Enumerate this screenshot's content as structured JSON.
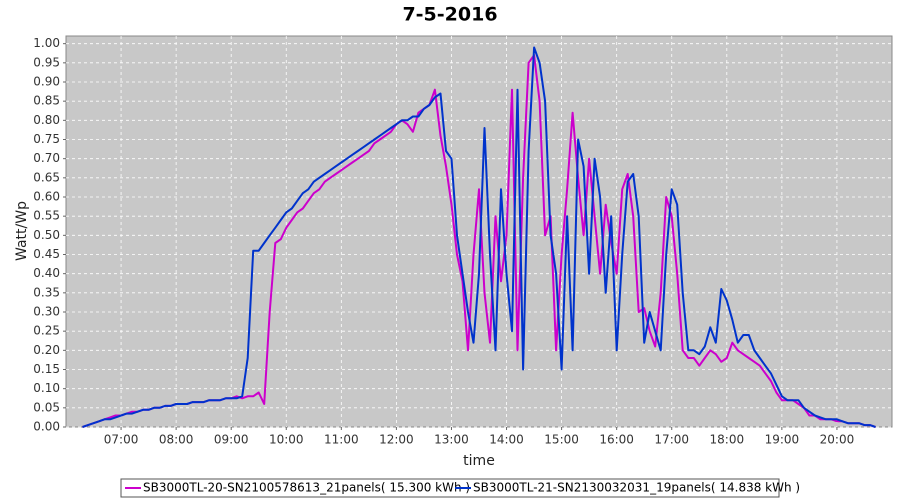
{
  "chart_data": {
    "type": "line",
    "title": "7-5-2016",
    "x_label": "time",
    "y_label": "Watt/Wp",
    "xlim": [
      6.0,
      21.0
    ],
    "xticks": [
      {
        "value": 7,
        "label": "07:00"
      },
      {
        "value": 8,
        "label": "08:00"
      },
      {
        "value": 9,
        "label": "09:00"
      },
      {
        "value": 10,
        "label": "10:00"
      },
      {
        "value": 11,
        "label": "11:00"
      },
      {
        "value": 12,
        "label": "12:00"
      },
      {
        "value": 13,
        "label": "13:00"
      },
      {
        "value": 14,
        "label": "14:00"
      },
      {
        "value": 15,
        "label": "15:00"
      },
      {
        "value": 16,
        "label": "16:00"
      },
      {
        "value": 17,
        "label": "17:00"
      },
      {
        "value": 18,
        "label": "18:00"
      },
      {
        "value": 19,
        "label": "19:00"
      },
      {
        "value": 20,
        "label": "20:00"
      }
    ],
    "ylim": [
      0,
      1.02
    ],
    "yticks": [
      {
        "value": 0,
        "label": "0.00"
      },
      {
        "value": 0.05,
        "label": "0.05"
      },
      {
        "value": 0.1,
        "label": "0.10"
      },
      {
        "value": 0.15,
        "label": "0.15"
      },
      {
        "value": 0.2,
        "label": "0.20"
      },
      {
        "value": 0.25,
        "label": "0.25"
      },
      {
        "value": 0.3,
        "label": "0.30"
      },
      {
        "value": 0.35,
        "label": "0.35"
      },
      {
        "value": 0.4,
        "label": "0.40"
      },
      {
        "value": 0.45,
        "label": "0.45"
      },
      {
        "value": 0.5,
        "label": "0.50"
      },
      {
        "value": 0.55,
        "label": "0.55"
      },
      {
        "value": 0.6,
        "label": "0.60"
      },
      {
        "value": 0.65,
        "label": "0.65"
      },
      {
        "value": 0.7,
        "label": "0.70"
      },
      {
        "value": 0.75,
        "label": "0.75"
      },
      {
        "value": 0.8,
        "label": "0.80"
      },
      {
        "value": 0.85,
        "label": "0.85"
      },
      {
        "value": 0.9,
        "label": "0.90"
      },
      {
        "value": 0.95,
        "label": "0.95"
      },
      {
        "value": 1.0,
        "label": "1.00"
      }
    ],
    "grid": true,
    "legend": "bottom",
    "x": [
      6.3,
      6.4,
      6.5,
      6.6,
      6.7,
      6.8,
      6.9,
      7.0,
      7.1,
      7.2,
      7.3,
      7.4,
      7.5,
      7.6,
      7.7,
      7.8,
      7.9,
      8.0,
      8.1,
      8.2,
      8.3,
      8.4,
      8.5,
      8.6,
      8.7,
      8.8,
      8.9,
      9.0,
      9.1,
      9.2,
      9.3,
      9.4,
      9.5,
      9.6,
      9.7,
      9.8,
      9.9,
      10.0,
      10.1,
      10.2,
      10.3,
      10.4,
      10.5,
      10.6,
      10.7,
      10.8,
      10.9,
      11.0,
      11.1,
      11.2,
      11.3,
      11.4,
      11.5,
      11.6,
      11.7,
      11.8,
      11.9,
      12.0,
      12.1,
      12.2,
      12.3,
      12.4,
      12.5,
      12.6,
      12.7,
      12.8,
      12.9,
      13.0,
      13.1,
      13.2,
      13.3,
      13.4,
      13.5,
      13.6,
      13.7,
      13.8,
      13.9,
      14.0,
      14.1,
      14.2,
      14.3,
      14.4,
      14.5,
      14.6,
      14.7,
      14.8,
      14.9,
      15.0,
      15.1,
      15.2,
      15.3,
      15.4,
      15.5,
      15.6,
      15.7,
      15.8,
      15.9,
      16.0,
      16.1,
      16.2,
      16.3,
      16.4,
      16.5,
      16.6,
      16.7,
      16.8,
      16.9,
      17.0,
      17.1,
      17.2,
      17.3,
      17.4,
      17.5,
      17.6,
      17.7,
      17.8,
      17.9,
      18.0,
      18.1,
      18.2,
      18.3,
      18.4,
      18.5,
      18.6,
      18.7,
      18.8,
      18.9,
      19.0,
      19.1,
      19.2,
      19.3,
      19.4,
      19.5,
      19.6,
      19.7,
      19.8,
      19.9,
      20.0,
      20.1,
      20.2,
      20.3,
      20.4,
      20.5,
      20.6,
      20.7
    ],
    "series": [
      {
        "name": "SB3000TL-20-SN2100578613_21panels( 15.300 kWh )",
        "color": "#cc00cc",
        "values": [
          0,
          0.005,
          0.01,
          0.015,
          0.02,
          0.025,
          0.03,
          0.03,
          0.035,
          0.04,
          0.04,
          0.045,
          0.045,
          0.05,
          0.05,
          0.055,
          0.055,
          0.06,
          0.06,
          0.06,
          0.065,
          0.065,
          0.065,
          0.07,
          0.07,
          0.07,
          0.075,
          0.075,
          0.08,
          0.075,
          0.08,
          0.08,
          0.09,
          0.06,
          0.3,
          0.48,
          0.49,
          0.52,
          0.54,
          0.56,
          0.57,
          0.59,
          0.61,
          0.62,
          0.64,
          0.65,
          0.66,
          0.67,
          0.68,
          0.69,
          0.7,
          0.71,
          0.72,
          0.74,
          0.75,
          0.76,
          0.77,
          0.79,
          0.8,
          0.79,
          0.77,
          0.82,
          0.83,
          0.84,
          0.88,
          0.76,
          0.68,
          0.58,
          0.45,
          0.38,
          0.2,
          0.45,
          0.62,
          0.35,
          0.22,
          0.55,
          0.38,
          0.5,
          0.88,
          0.2,
          0.65,
          0.95,
          0.97,
          0.85,
          0.5,
          0.55,
          0.2,
          0.45,
          0.62,
          0.82,
          0.65,
          0.5,
          0.7,
          0.55,
          0.4,
          0.58,
          0.48,
          0.4,
          0.62,
          0.66,
          0.55,
          0.3,
          0.31,
          0.25,
          0.21,
          0.35,
          0.6,
          0.55,
          0.4,
          0.2,
          0.18,
          0.18,
          0.16,
          0.18,
          0.2,
          0.19,
          0.17,
          0.18,
          0.22,
          0.2,
          0.19,
          0.18,
          0.17,
          0.16,
          0.14,
          0.12,
          0.09,
          0.07,
          0.07,
          0.07,
          0.06,
          0.05,
          0.03,
          0.03,
          0.02,
          0.02,
          0.02,
          0.015,
          0.015,
          0.01,
          0.01,
          0.01,
          0.005,
          0.005,
          0
        ]
      },
      {
        "name": "SB3000TL-21-SN2130032031_19panels( 14.838 kWh )",
        "color": "#0033cc",
        "values": [
          0,
          0.005,
          0.01,
          0.015,
          0.02,
          0.02,
          0.025,
          0.03,
          0.035,
          0.035,
          0.04,
          0.045,
          0.045,
          0.05,
          0.05,
          0.055,
          0.055,
          0.06,
          0.06,
          0.06,
          0.065,
          0.065,
          0.065,
          0.07,
          0.07,
          0.07,
          0.075,
          0.075,
          0.075,
          0.08,
          0.18,
          0.46,
          0.46,
          0.48,
          0.5,
          0.52,
          0.54,
          0.56,
          0.57,
          0.59,
          0.61,
          0.62,
          0.64,
          0.65,
          0.66,
          0.67,
          0.68,
          0.69,
          0.7,
          0.71,
          0.72,
          0.73,
          0.74,
          0.75,
          0.76,
          0.77,
          0.78,
          0.79,
          0.8,
          0.8,
          0.81,
          0.81,
          0.83,
          0.84,
          0.86,
          0.87,
          0.72,
          0.7,
          0.5,
          0.4,
          0.3,
          0.22,
          0.4,
          0.78,
          0.45,
          0.2,
          0.62,
          0.4,
          0.25,
          0.88,
          0.15,
          0.72,
          0.99,
          0.95,
          0.85,
          0.5,
          0.4,
          0.15,
          0.55,
          0.2,
          0.75,
          0.68,
          0.4,
          0.7,
          0.6,
          0.35,
          0.55,
          0.2,
          0.45,
          0.64,
          0.66,
          0.55,
          0.22,
          0.3,
          0.25,
          0.2,
          0.45,
          0.62,
          0.58,
          0.35,
          0.2,
          0.2,
          0.19,
          0.21,
          0.26,
          0.22,
          0.36,
          0.33,
          0.28,
          0.22,
          0.24,
          0.24,
          0.2,
          0.18,
          0.16,
          0.14,
          0.11,
          0.08,
          0.07,
          0.07,
          0.07,
          0.05,
          0.04,
          0.03,
          0.025,
          0.02,
          0.02,
          0.02,
          0.015,
          0.01,
          0.01,
          0.01,
          0.005,
          0.005,
          0
        ]
      }
    ]
  }
}
